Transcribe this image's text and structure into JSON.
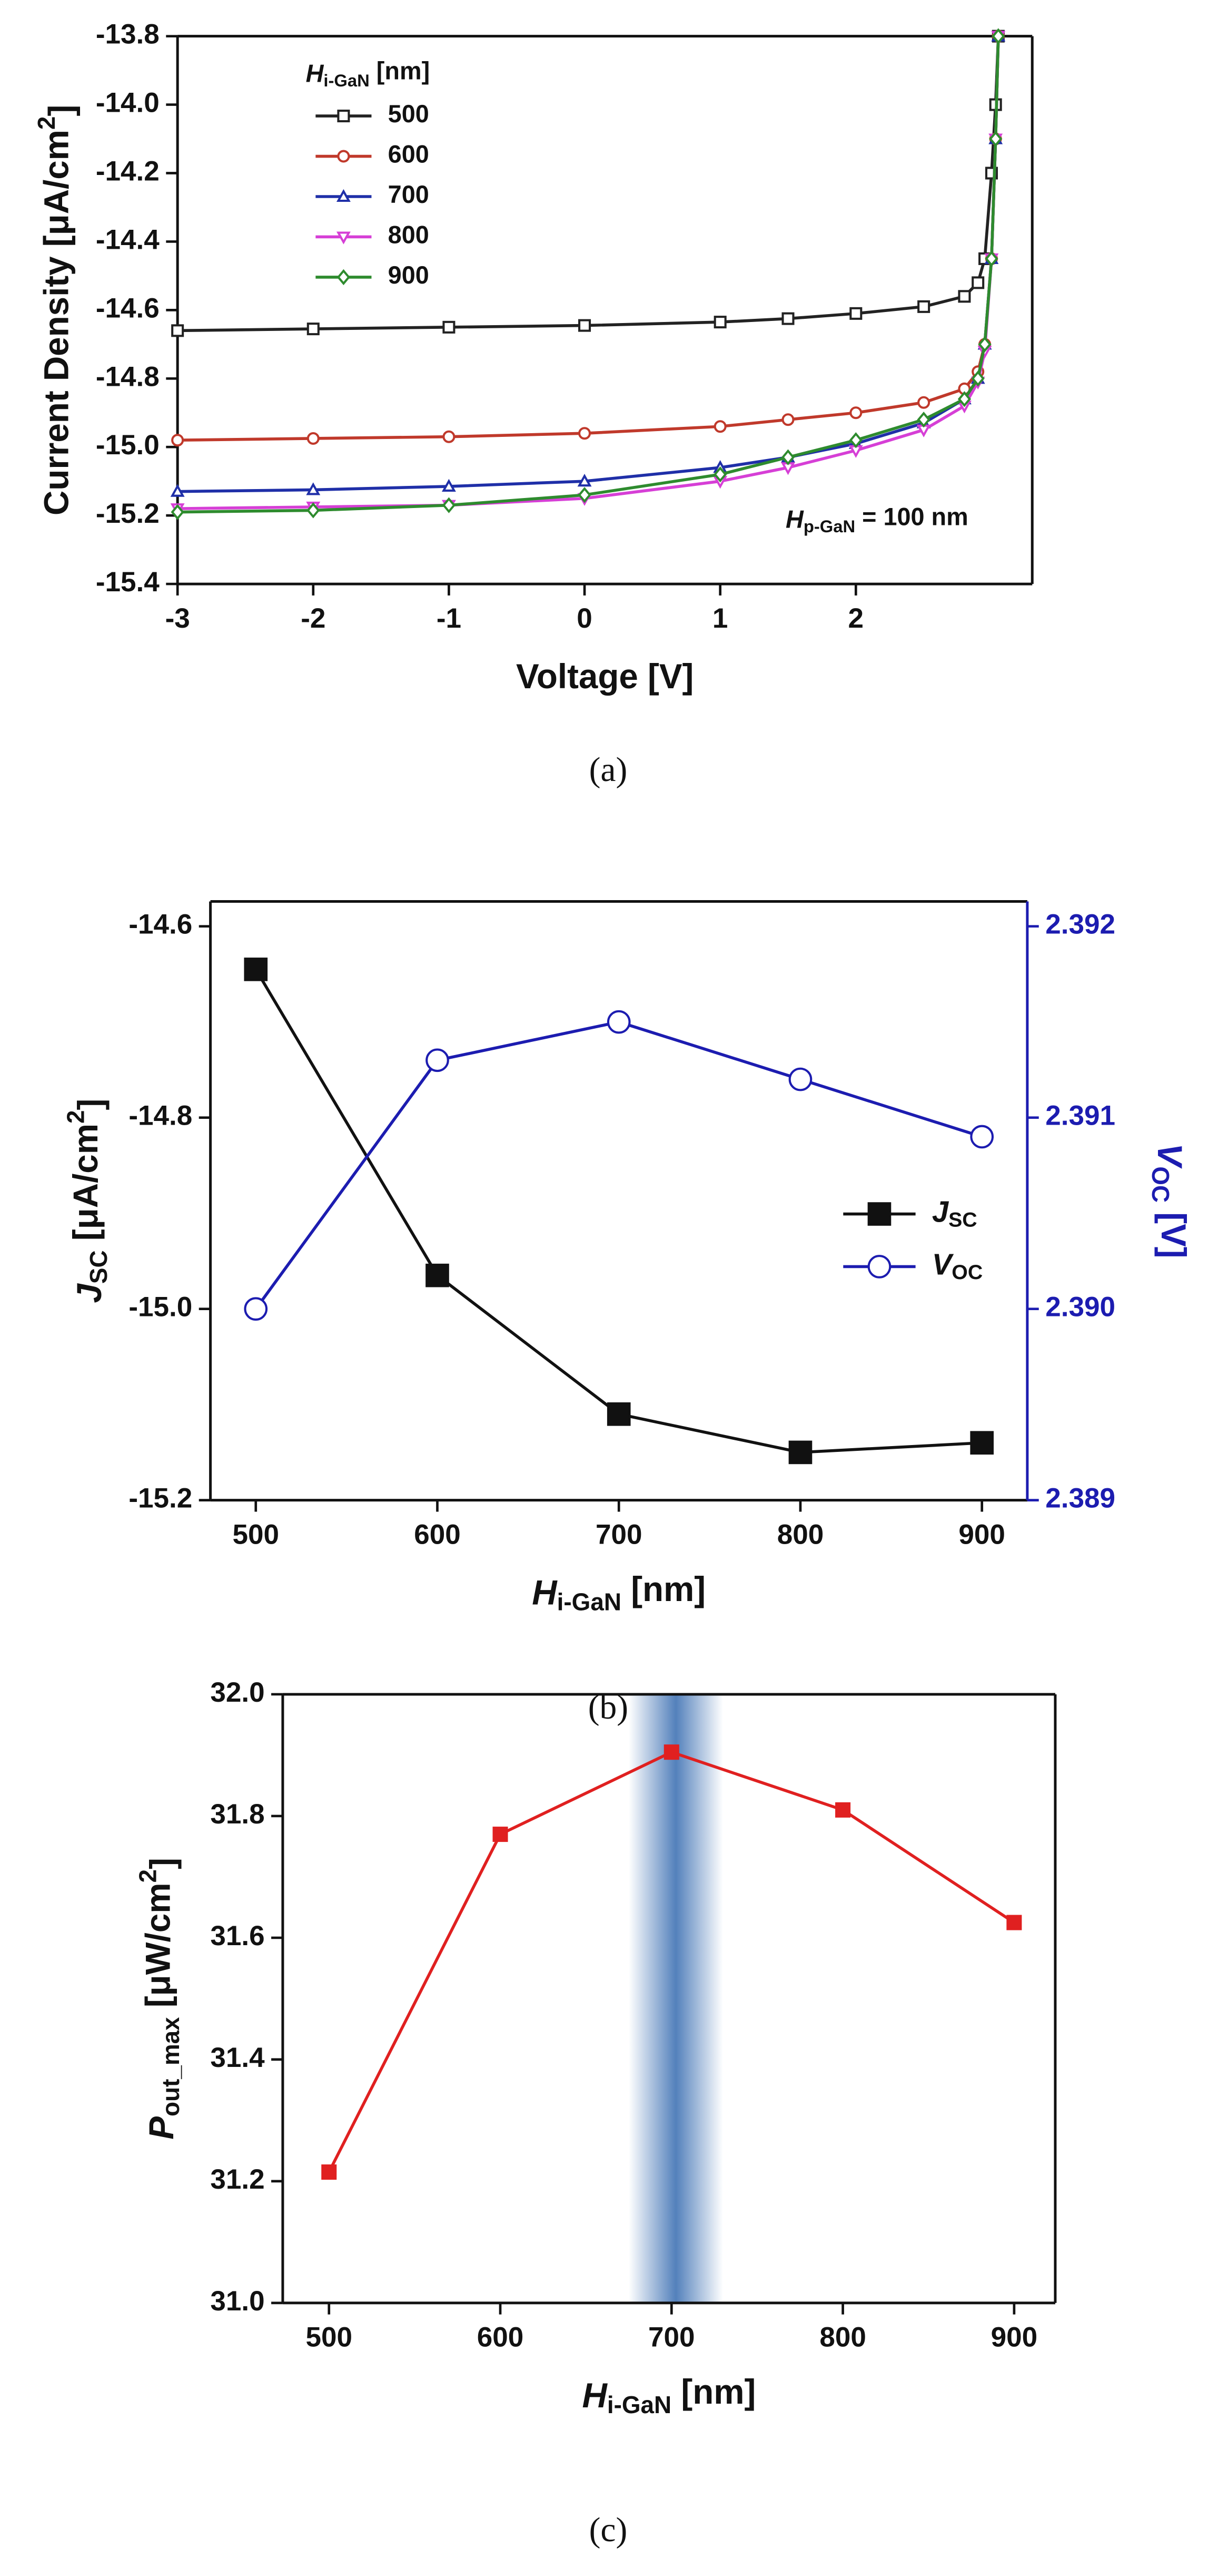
{
  "chart_data": [
    {
      "type": "line",
      "caption": "(a)",
      "x_label": {
        "parts": [
          {
            "text": "Voltage [V]"
          }
        ]
      },
      "y_label": {
        "parts": [
          {
            "text": "Current Density [μA/cm"
          },
          {
            "text": "2",
            "style": "sup"
          },
          {
            "text": "]"
          }
        ]
      },
      "legend_title": {
        "parts": [
          {
            "text": "H",
            "style": "italic"
          },
          {
            "text": "i-GaN",
            "style": "sub"
          },
          {
            "text": " [nm]"
          }
        ]
      },
      "annotation": {
        "parts": [
          {
            "text": "H",
            "style": "italic"
          },
          {
            "text": "p-GaN",
            "style": "sub"
          },
          {
            "text": " = 100 nm"
          }
        ]
      },
      "legend": "upper left",
      "x": [
        -3,
        -2,
        -1,
        0,
        1,
        1.5,
        2,
        2.5,
        2.8,
        2.9,
        2.95,
        3.0,
        3.03,
        3.05
      ],
      "series": [
        {
          "name": "500",
          "color": "#222222",
          "marker": "square",
          "filled": false,
          "values": [
            -14.66,
            -14.655,
            -14.65,
            -14.645,
            -14.635,
            -14.625,
            -14.61,
            -14.59,
            -14.56,
            -14.52,
            -14.45,
            -14.2,
            -14.0,
            -13.8
          ]
        },
        {
          "name": "600",
          "color": "#c0392b",
          "marker": "circle",
          "filled": false,
          "values": [
            -14.98,
            -14.975,
            -14.97,
            -14.96,
            -14.94,
            -14.92,
            -14.9,
            -14.87,
            -14.83,
            -14.78,
            -14.7,
            -14.45,
            -14.1,
            -13.8
          ]
        },
        {
          "name": "700",
          "color": "#1f2fa8",
          "marker": "triangle-up",
          "filled": false,
          "values": [
            -15.13,
            -15.125,
            -15.115,
            -15.1,
            -15.06,
            -15.03,
            -14.99,
            -14.93,
            -14.86,
            -14.8,
            -14.7,
            -14.45,
            -14.1,
            -13.8
          ]
        },
        {
          "name": "800",
          "color": "#d63fd6",
          "marker": "triangle-down",
          "filled": false,
          "values": [
            -15.18,
            -15.175,
            -15.17,
            -15.15,
            -15.1,
            -15.06,
            -15.01,
            -14.95,
            -14.88,
            -14.81,
            -14.72,
            -14.45,
            -14.1,
            -13.8
          ]
        },
        {
          "name": "900",
          "color": "#2e8b2e",
          "marker": "diamond",
          "filled": false,
          "values": [
            -15.19,
            -15.185,
            -15.17,
            -15.14,
            -15.08,
            -15.03,
            -14.98,
            -14.92,
            -14.86,
            -14.8,
            -14.7,
            -14.45,
            -14.1,
            -13.8
          ]
        }
      ],
      "xlim": [
        -3,
        3.3
      ],
      "xticks": [
        -3,
        -2,
        -1,
        0,
        1,
        2
      ],
      "ylim": [
        -15.4,
        -13.8
      ],
      "yticks": [
        -15.4,
        -15.2,
        {
          "value": -15,
          "label": "-15.0"
        },
        -14.8,
        -14.6,
        -14.4,
        -14.2,
        {
          "value": -14,
          "label": "-14.0"
        },
        -13.8
      ]
    },
    {
      "type": "line",
      "caption": "(b)",
      "x_label": {
        "parts": [
          {
            "text": "H",
            "style": "italic"
          },
          {
            "text": "i-GaN",
            "style": "sub"
          },
          {
            "text": " [nm]"
          }
        ]
      },
      "y_label": {
        "parts": [
          {
            "text": "J",
            "style": "italic"
          },
          {
            "text": "SC",
            "style": "sub"
          },
          {
            "text": " [μA/cm"
          },
          {
            "text": "2",
            "style": "sup"
          },
          {
            "text": "]"
          }
        ]
      },
      "y2_label": {
        "parts": [
          {
            "text": "V",
            "style": "italic"
          },
          {
            "text": "OC",
            "style": "sub"
          },
          {
            "text": " [V]"
          }
        ]
      },
      "y2_color": "#1c1cb0",
      "legend": "center right",
      "x": [
        500,
        600,
        700,
        800,
        900
      ],
      "series": [
        {
          "name": "J",
          "name_sub": "SC",
          "color": "#111111",
          "marker": "square",
          "filled": true,
          "values": [
            -14.645,
            -14.965,
            -15.11,
            -15.15,
            -15.14
          ]
        },
        {
          "name": "V",
          "name_sub": "OC",
          "color": "#1c1cb0",
          "marker": "circle",
          "filled": false,
          "axis": "y2",
          "values": [
            2.39,
            2.3913,
            2.3915,
            2.3912,
            2.3909
          ]
        }
      ],
      "xlim": [
        475,
        925
      ],
      "xticks": [
        500,
        600,
        700,
        800,
        900
      ],
      "ylim": [
        -15.2,
        -14.574
      ],
      "yticks": [
        -15.2,
        {
          "value": -15,
          "label": "-15.0"
        },
        -14.8,
        -14.6
      ],
      "y2lim": [
        2.389,
        2.39213
      ],
      "y2ticks": [
        2.389,
        {
          "value": 2.39,
          "label": "2.390"
        },
        2.391,
        2.392
      ]
    },
    {
      "type": "line",
      "caption": "(c)",
      "x_label": {
        "parts": [
          {
            "text": "H",
            "style": "italic"
          },
          {
            "text": "i-GaN",
            "style": "sub"
          },
          {
            "text": " [nm]"
          }
        ]
      },
      "y_label": {
        "parts": [
          {
            "text": "P",
            "style": "italic"
          },
          {
            "text": "out_max",
            "style": "sub"
          },
          {
            "text": " [μW/cm"
          },
          {
            "text": "2",
            "style": "sup"
          },
          {
            "text": "]"
          }
        ]
      },
      "highlight_range": [
        675,
        730
      ],
      "x": [
        500,
        600,
        700,
        800,
        900
      ],
      "series": [
        {
          "color": "#e02020",
          "marker": "square",
          "filled": true,
          "values": [
            31.215,
            31.77,
            31.905,
            31.81,
            31.625
          ]
        }
      ],
      "xlim": [
        473,
        924
      ],
      "xticks": [
        500,
        600,
        700,
        800,
        900
      ],
      "ylim": [
        31,
        32
      ],
      "yticks": [
        {
          "value": 31,
          "label": "31.0"
        },
        31.2,
        31.4,
        31.6,
        31.8,
        {
          "value": 32,
          "label": "32.0"
        }
      ]
    }
  ]
}
